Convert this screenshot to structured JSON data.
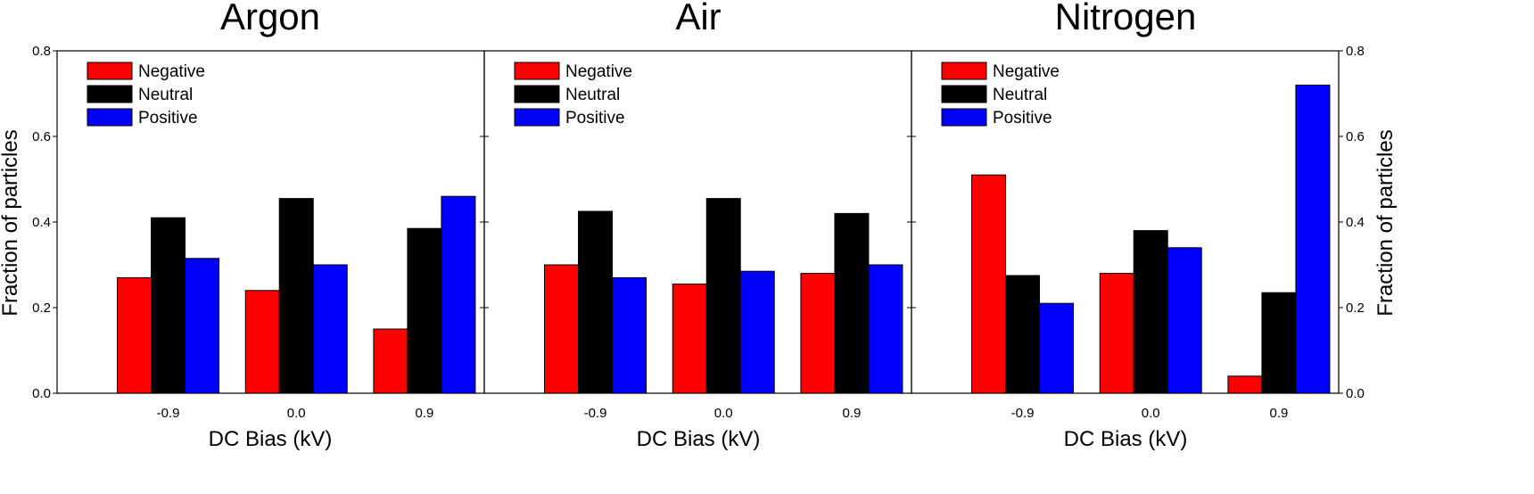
{
  "chart_data": {
    "type": "bar",
    "shared_ylabel": "Fraction of particles",
    "xlabel": "DC Bias (kV)",
    "ylim": [
      0,
      0.8
    ],
    "yticks": [
      "0.0",
      "0.2",
      "0.4",
      "0.6",
      "0.8"
    ],
    "series_styles": [
      {
        "name": "Negative",
        "color": "#ff0000"
      },
      {
        "name": "Neutral",
        "color": "#000000"
      },
      {
        "name": "Positive",
        "color": "#0000ff"
      }
    ],
    "legend_position": "top-left",
    "panels": [
      {
        "title": "Argon",
        "categories": [
          "-0.9",
          "0.0",
          "0.9"
        ],
        "series": [
          {
            "name": "Negative",
            "values": [
              0.27,
              0.24,
              0.15
            ]
          },
          {
            "name": "Neutral",
            "values": [
              0.41,
              0.455,
              0.385
            ]
          },
          {
            "name": "Positive",
            "values": [
              0.315,
              0.3,
              0.46
            ]
          }
        ]
      },
      {
        "title": "Air",
        "categories": [
          "-0.9",
          "0.0",
          "0.9"
        ],
        "series": [
          {
            "name": "Negative",
            "values": [
              0.3,
              0.255,
              0.28
            ]
          },
          {
            "name": "Neutral",
            "values": [
              0.425,
              0.455,
              0.42
            ]
          },
          {
            "name": "Positive",
            "values": [
              0.27,
              0.285,
              0.3
            ]
          }
        ]
      },
      {
        "title": "Nitrogen",
        "categories": [
          "-0.9",
          "0.0",
          "0.9"
        ],
        "series": [
          {
            "name": "Negative",
            "values": [
              0.51,
              0.28,
              0.04
            ]
          },
          {
            "name": "Neutral",
            "values": [
              0.275,
              0.38,
              0.235
            ]
          },
          {
            "name": "Positive",
            "values": [
              0.21,
              0.34,
              0.72
            ]
          }
        ]
      }
    ]
  }
}
